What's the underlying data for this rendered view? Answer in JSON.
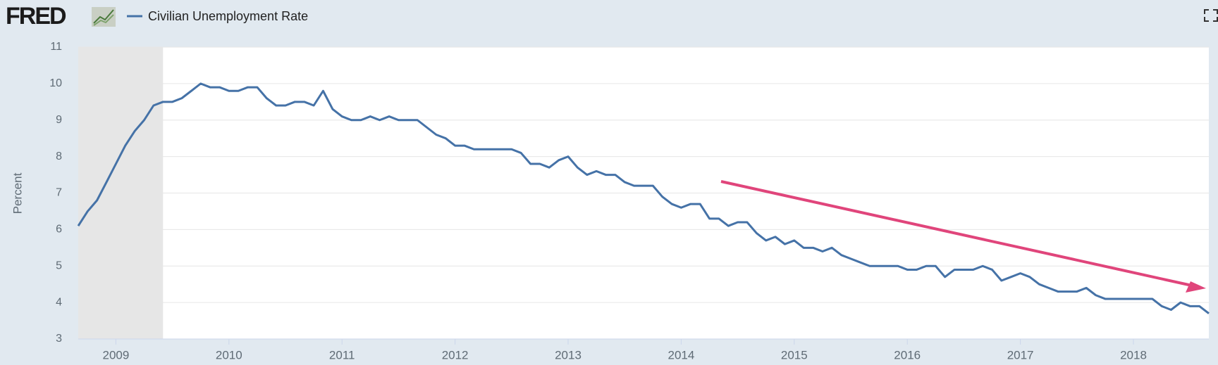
{
  "header": {
    "logo": "FRED"
  },
  "chart_data": {
    "type": "line",
    "title": "Civilian Unemployment Rate",
    "y_label": "Percent",
    "xlim": [
      2008.667,
      2018.667
    ],
    "xticks": [
      2009,
      2010,
      2011,
      2012,
      2013,
      2014,
      2015,
      2016,
      2017,
      2018
    ],
    "ylim": [
      3,
      11
    ],
    "yticks": [
      3,
      4,
      5,
      6,
      7,
      8,
      9,
      10,
      11
    ],
    "grid": true,
    "recession": [
      2008.667,
      2009.417
    ],
    "x": [
      2008.667,
      2008.75,
      2008.833,
      2008.917,
      2009,
      2009.083,
      2009.167,
      2009.25,
      2009.333,
      2009.417,
      2009.5,
      2009.583,
      2009.667,
      2009.75,
      2009.833,
      2009.917,
      2010,
      2010.083,
      2010.167,
      2010.25,
      2010.333,
      2010.417,
      2010.5,
      2010.583,
      2010.667,
      2010.75,
      2010.833,
      2010.917,
      2011,
      2011.083,
      2011.167,
      2011.25,
      2011.333,
      2011.417,
      2011.5,
      2011.583,
      2011.667,
      2011.75,
      2011.833,
      2011.917,
      2012,
      2012.083,
      2012.167,
      2012.25,
      2012.333,
      2012.417,
      2012.5,
      2012.583,
      2012.667,
      2012.75,
      2012.833,
      2012.917,
      2013,
      2013.083,
      2013.167,
      2013.25,
      2013.333,
      2013.417,
      2013.5,
      2013.583,
      2013.667,
      2013.75,
      2013.833,
      2013.917,
      2014,
      2014.083,
      2014.167,
      2014.25,
      2014.333,
      2014.417,
      2014.5,
      2014.583,
      2014.667,
      2014.75,
      2014.833,
      2014.917,
      2015,
      2015.083,
      2015.167,
      2015.25,
      2015.333,
      2015.417,
      2015.5,
      2015.583,
      2015.667,
      2015.75,
      2015.833,
      2015.917,
      2016,
      2016.083,
      2016.167,
      2016.25,
      2016.333,
      2016.417,
      2016.5,
      2016.583,
      2016.667,
      2016.75,
      2016.833,
      2016.917,
      2017,
      2017.083,
      2017.167,
      2017.25,
      2017.333,
      2017.417,
      2017.5,
      2017.583,
      2017.667,
      2017.75,
      2017.833,
      2017.917,
      2018,
      2018.083,
      2018.167,
      2018.25,
      2018.333,
      2018.417,
      2018.5,
      2018.583,
      2018.667
    ],
    "series": [
      {
        "name": "Civilian Unemployment Rate",
        "color": "#4572a7",
        "values": [
          6.1,
          6.5,
          6.8,
          7.3,
          7.8,
          8.3,
          8.7,
          9.0,
          9.4,
          9.5,
          9.5,
          9.6,
          9.8,
          10.0,
          9.9,
          9.9,
          9.8,
          9.8,
          9.9,
          9.9,
          9.6,
          9.4,
          9.4,
          9.5,
          9.5,
          9.4,
          9.8,
          9.3,
          9.1,
          9.0,
          9.0,
          9.1,
          9.0,
          9.1,
          9.0,
          9.0,
          9.0,
          8.8,
          8.6,
          8.5,
          8.3,
          8.3,
          8.2,
          8.2,
          8.2,
          8.2,
          8.2,
          8.1,
          7.8,
          7.8,
          7.7,
          7.9,
          8.0,
          7.7,
          7.5,
          7.6,
          7.5,
          7.5,
          7.3,
          7.2,
          7.2,
          7.2,
          6.9,
          6.7,
          6.6,
          6.7,
          6.7,
          6.3,
          6.3,
          6.1,
          6.2,
          6.2,
          5.9,
          5.7,
          5.8,
          5.6,
          5.7,
          5.5,
          5.5,
          5.4,
          5.5,
          5.3,
          5.2,
          5.1,
          5.0,
          5.0,
          5.0,
          5.0,
          4.9,
          4.9,
          5.0,
          5.0,
          4.7,
          4.9,
          4.9,
          4.9,
          5.0,
          4.9,
          4.6,
          4.7,
          4.8,
          4.7,
          4.5,
          4.4,
          4.3,
          4.3,
          4.3,
          4.4,
          4.2,
          4.1,
          4.1,
          4.1,
          4.1,
          4.1,
          4.1,
          3.9,
          3.8,
          4.0,
          3.9,
          3.9,
          3.7
        ]
      }
    ]
  }
}
